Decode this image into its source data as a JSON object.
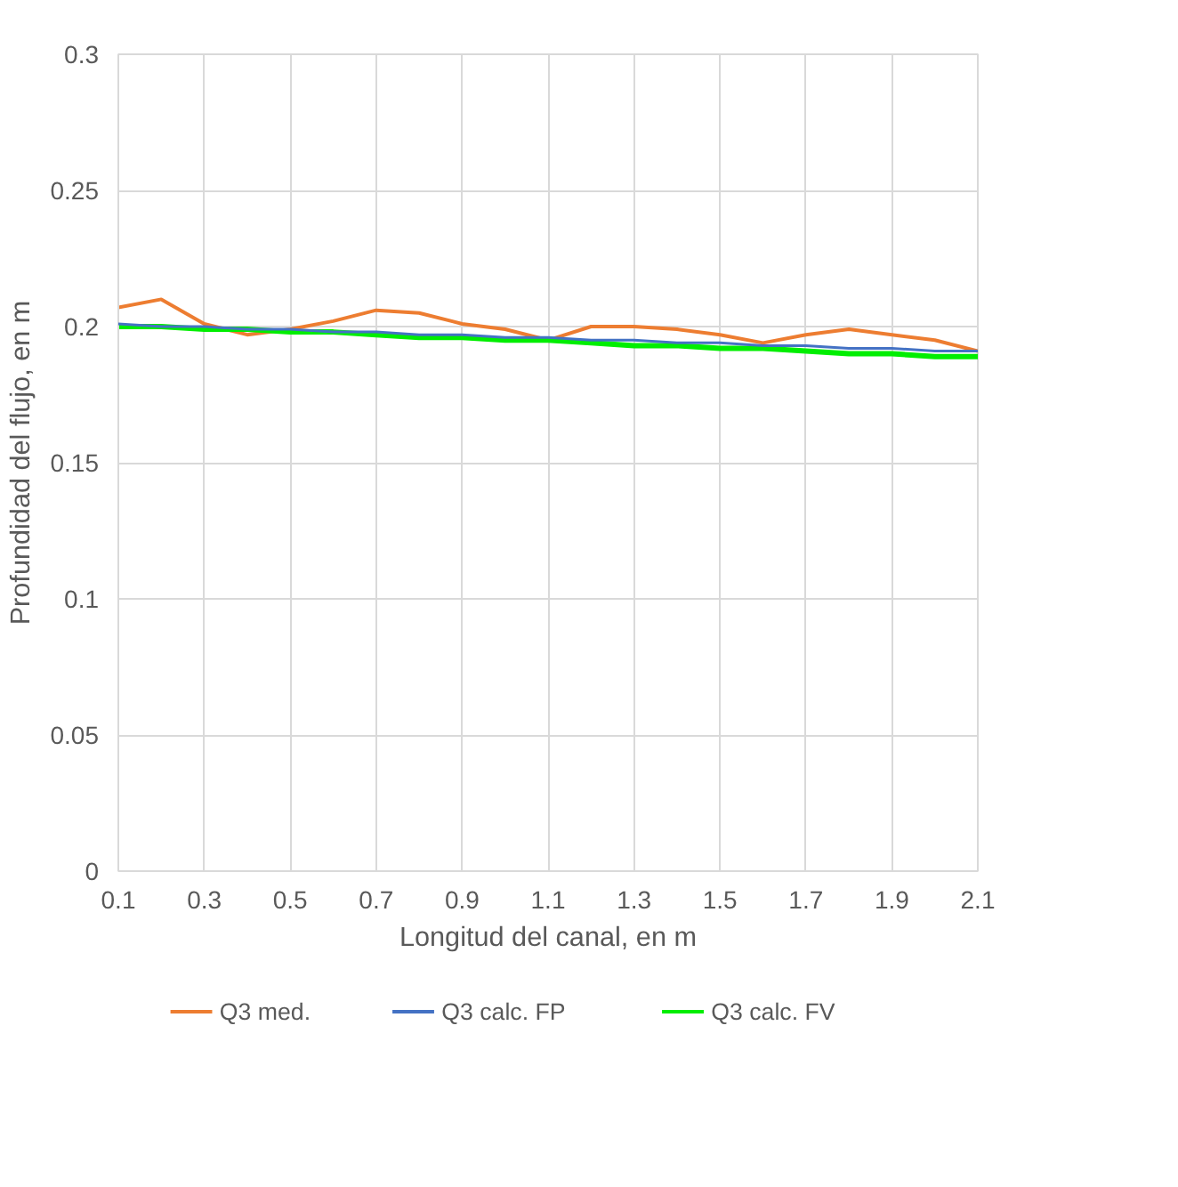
{
  "chart_data": {
    "type": "line",
    "xlabel": "Longitud del canal, en m",
    "ylabel": "Profundidad del flujo, en m",
    "x": [
      0.1,
      0.2,
      0.3,
      0.4,
      0.5,
      0.6,
      0.7,
      0.8,
      0.9,
      1.0,
      1.1,
      1.2,
      1.3,
      1.4,
      1.5,
      1.6,
      1.7,
      1.8,
      1.9,
      2.0,
      2.1
    ],
    "series": [
      {
        "name": "Q3 med.",
        "color": "#ed7d31",
        "values": [
          0.207,
          0.21,
          0.201,
          0.197,
          0.199,
          0.202,
          0.206,
          0.205,
          0.201,
          0.199,
          0.195,
          0.2,
          0.2,
          0.199,
          0.197,
          0.194,
          0.197,
          0.199,
          0.197,
          0.195,
          0.191
        ]
      },
      {
        "name": "Q3 calc. FP",
        "color": "#4472c4",
        "values": [
          0.201,
          0.2,
          0.2,
          0.199,
          0.199,
          0.198,
          0.198,
          0.197,
          0.197,
          0.196,
          0.196,
          0.195,
          0.195,
          0.194,
          0.194,
          0.193,
          0.193,
          0.192,
          0.192,
          0.191,
          0.191
        ]
      },
      {
        "name": "Q3 calc. FV",
        "color": "#00ee00",
        "values": [
          0.2,
          0.2,
          0.199,
          0.199,
          0.198,
          0.198,
          0.197,
          0.196,
          0.196,
          0.195,
          0.195,
          0.194,
          0.193,
          0.193,
          0.192,
          0.192,
          0.191,
          0.19,
          0.19,
          0.189,
          0.189
        ]
      }
    ],
    "xlim": [
      0.1,
      2.1
    ],
    "xticks": [
      0.1,
      0.3,
      0.5,
      0.7,
      0.9,
      1.1,
      1.3,
      1.5,
      1.7,
      1.9,
      2.1
    ],
    "ylim": [
      0,
      0.3
    ],
    "yticks": [
      {
        "value": 0,
        "label": "0"
      },
      0.05,
      0.1,
      0.15,
      0.2,
      0.25,
      0.3
    ],
    "grid": true,
    "legend": "bottom",
    "marker": "none",
    "line_style": "solid"
  }
}
